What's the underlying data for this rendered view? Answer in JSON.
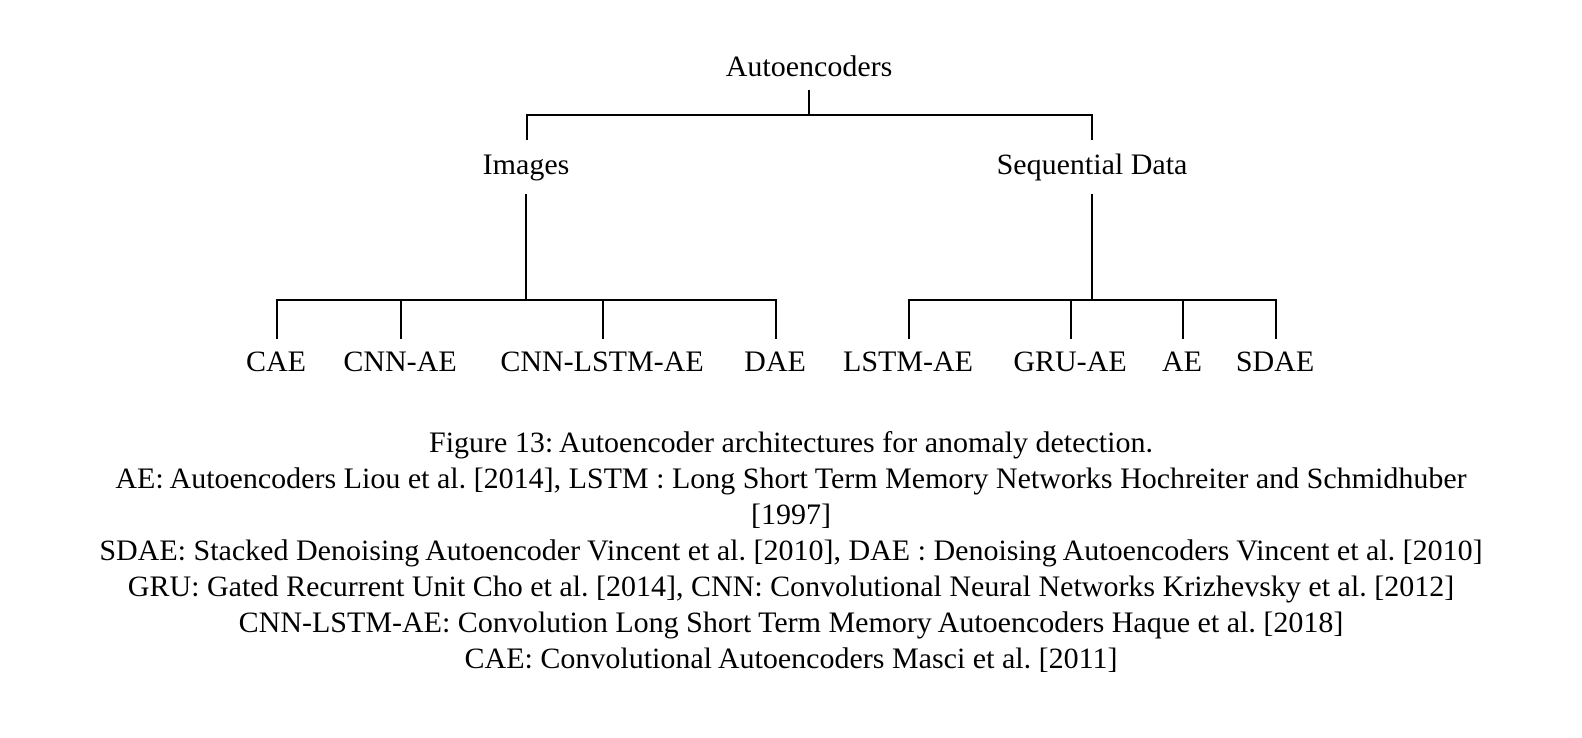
{
  "tree": {
    "root": "Autoencoders",
    "branches": [
      {
        "label": "Images",
        "leaves": [
          "CAE",
          "CNN-AE",
          "CNN-LSTM-AE",
          "DAE"
        ]
      },
      {
        "label": "Sequential Data",
        "leaves": [
          "LSTM-AE",
          "GRU-AE",
          "AE",
          "SDAE"
        ]
      }
    ]
  },
  "caption": {
    "title": "Figure 13: Autoencoder architectures for anomaly detection.",
    "lines": [
      "AE: Autoencoders Liou et al. [2014], LSTM : Long Short Term Memory Networks Hochreiter and Schmidhuber",
      "[1997]",
      "SDAE: Stacked Denoising Autoencoder Vincent et al. [2010], DAE : Denoising Autoencoders Vincent et al. [2010]",
      "GRU: Gated Recurrent Unit Cho et al. [2014], CNN: Convolutional Neural Networks Krizhevsky et al. [2012]",
      "CNN-LSTM-AE: Convolution Long Short Term Memory Autoencoders Haque et al. [2018]",
      "CAE: Convolutional Autoencoders Masci et al. [2011]"
    ]
  }
}
